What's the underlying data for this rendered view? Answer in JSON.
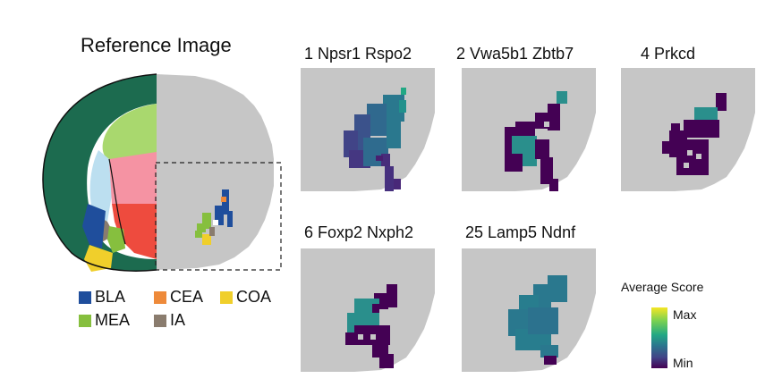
{
  "reference": {
    "title": "Reference Image",
    "regions": [
      {
        "label": "BLA",
        "color": "#1f4e9c"
      },
      {
        "label": "CEA",
        "color": "#ee8a3a"
      },
      {
        "label": "COA",
        "color": "#f0cf2b"
      },
      {
        "label": "MEA",
        "color": "#86bf3e"
      },
      {
        "label": "IA",
        "color": "#8a7c6e"
      }
    ],
    "region_colors": {
      "cortex": "#1c6b4f",
      "hippocampus": "#a9d86e",
      "pink": "#f593a3",
      "red": "#ee4b3e",
      "gray": "#c6c6c6",
      "lightblue": "#bcdff0"
    }
  },
  "panels": [
    {
      "title": "1 Npsr1 Rspo2"
    },
    {
      "title": "2 Vwa5b1 Zbtb7"
    },
    {
      "title": "4 Prkcd"
    },
    {
      "title": "6 Foxp2 Nxph2"
    },
    {
      "title": "25 Lamp5 Ndnf"
    }
  ],
  "colorbar": {
    "title": "Average Score",
    "max_label": "Max",
    "min_label": "Min",
    "colors": [
      "#f5e625",
      "#22a884",
      "#440154"
    ]
  }
}
